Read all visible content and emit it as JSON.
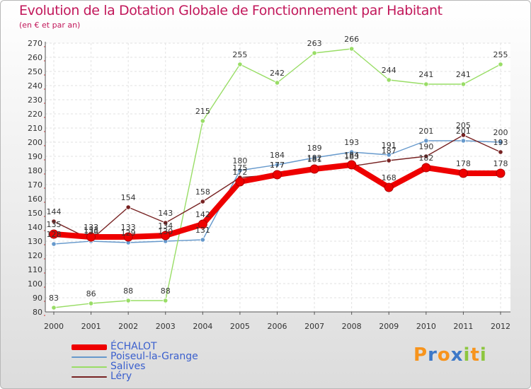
{
  "title": "Evolution de la Dotation Globale de Fonctionnement par Habitant",
  "subtitle": "(en € et par an)",
  "brand": {
    "text": "Proxiti",
    "letters": [
      {
        "ch": "P",
        "color": "#f7941d"
      },
      {
        "ch": "r",
        "color": "#3c78c8"
      },
      {
        "ch": "o",
        "color": "#f7941d"
      },
      {
        "ch": "x",
        "color": "#3c78c8"
      },
      {
        "ch": "i",
        "color": "#8dc63f"
      },
      {
        "ch": "t",
        "color": "#f7941d"
      },
      {
        "ch": "i",
        "color": "#8dc63f"
      }
    ]
  },
  "chart_data": {
    "type": "line",
    "title": "Evolution de la Dotation Globale de Fonctionnement par Habitant",
    "subtitle": "(en € et par an)",
    "xlabel": "",
    "ylabel": "",
    "x": [
      "2000",
      "2001",
      "2002",
      "2003",
      "2004",
      "2005",
      "2006",
      "2007",
      "2008",
      "2009",
      "2010",
      "2011",
      "2012"
    ],
    "ylim": [
      80,
      270
    ],
    "yticks": [
      80,
      90,
      100,
      110,
      120,
      130,
      140,
      150,
      160,
      170,
      180,
      190,
      200,
      210,
      220,
      230,
      240,
      250,
      260,
      270
    ],
    "grid": true,
    "legend_position": "bottom-left",
    "series": [
      {
        "name": "ÉCHALOT",
        "color": "#ee0000",
        "highlight": true,
        "values": [
          135,
          133,
          133,
          134,
          142,
          172,
          177,
          181,
          184,
          168,
          182,
          178,
          178
        ]
      },
      {
        "name": "Poiseul-la-Grange",
        "color": "#6699cc",
        "highlight": false,
        "values": [
          128,
          130,
          129,
          130,
          131,
          180,
          184,
          189,
          193,
          191,
          201,
          201,
          200
        ]
      },
      {
        "name": "Salives",
        "color": "#99dd66",
        "highlight": false,
        "values": [
          83,
          86,
          88,
          88,
          215,
          255,
          242,
          263,
          266,
          244,
          241,
          241,
          255
        ]
      },
      {
        "name": "Léry",
        "color": "#772222",
        "highlight": false,
        "values": [
          144,
          131,
          154,
          143,
          158,
          175,
          177,
          182,
          183,
          187,
          190,
          205,
          193
        ]
      }
    ]
  }
}
